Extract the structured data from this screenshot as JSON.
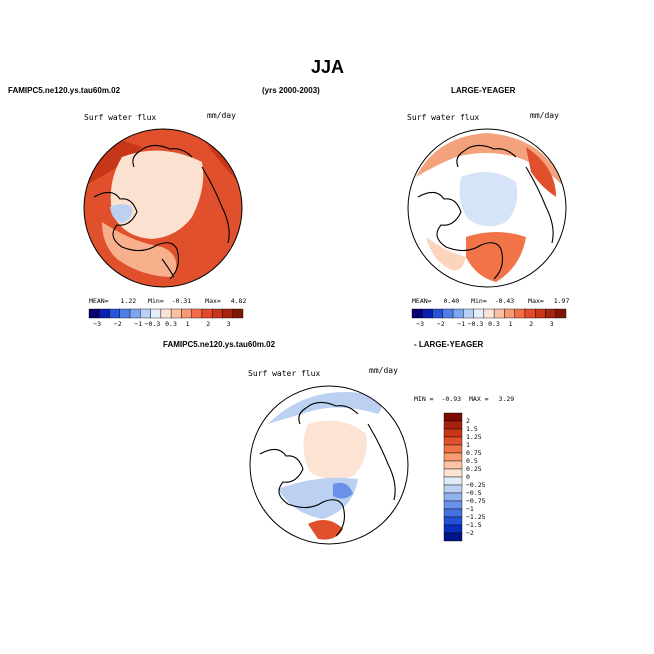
{
  "page": {
    "title": "JJA",
    "case_label": "FAMIPC5.ne120.ys.tau60m.02",
    "years_label": "(yrs 2000-2003)",
    "obs_label": "LARGE-YEAGER",
    "diff_case_label": "FAMIPC5.ne120.ys.tau60m.02",
    "diff_obs_label": "- LARGE-YEAGER"
  },
  "chart_data": [
    {
      "type": "heatmap",
      "id": "model",
      "title": "Surf water flux",
      "units": "mm/day",
      "stats": {
        "mean_label": "MEAN=",
        "mean": "1.22",
        "min_label": "Min=",
        "min": "-0.31",
        "max_label": "Max=",
        "max": "4.82"
      },
      "colorbar": {
        "orientation": "horizontal",
        "levels": [
          "-3",
          "-2",
          "-1",
          "-0.3",
          "0.3",
          "1",
          "2",
          "3"
        ],
        "colors": [
          "#08006e",
          "#0a1fb0",
          "#2a52d8",
          "#4e7fe6",
          "#7ea6f0",
          "#b8d0f4",
          "#e4eefa",
          "#fde4d4",
          "#fcc0a4",
          "#f89a76",
          "#f26c47",
          "#e24a28",
          "#c8361a",
          "#a42610",
          "#7e1606"
        ]
      }
    },
    {
      "type": "heatmap",
      "id": "obs",
      "title": "Surf water flux",
      "units": "mm/day",
      "stats": {
        "mean_label": "MEAN=",
        "mean": "0.40",
        "min_label": "Min=",
        "min": "-0.43",
        "max_label": "Max=",
        "max": "1.97"
      },
      "colorbar": {
        "orientation": "horizontal",
        "levels": [
          "-3",
          "-2",
          "-1",
          "-0.3",
          "0.3",
          "1",
          "2",
          "3"
        ],
        "colors": [
          "#08006e",
          "#0a1fb0",
          "#2a52d8",
          "#4e7fe6",
          "#7ea6f0",
          "#b8d0f4",
          "#e4eefa",
          "#fde4d4",
          "#fcc0a4",
          "#f89a76",
          "#f26c47",
          "#e24a28",
          "#c8361a",
          "#a42610",
          "#7e1606"
        ]
      }
    },
    {
      "type": "heatmap",
      "id": "diff",
      "title": "Surf water flux",
      "units": "mm/day",
      "stats": {
        "min_label": "MIN =",
        "min": "-0.93",
        "max_label": "MAX =",
        "max": "3.29"
      },
      "colorbar": {
        "orientation": "vertical",
        "levels": [
          "2",
          "1.5",
          "1.25",
          "1",
          "0.75",
          "0.5",
          "0.25",
          "0",
          "-0.25",
          "-0.5",
          "-0.75",
          "-1",
          "-1.25",
          "-1.5",
          "-2"
        ],
        "colors": [
          "#7e0a04",
          "#a8200e",
          "#c8361a",
          "#e0502c",
          "#f07448",
          "#f89a72",
          "#fcc3a6",
          "#fde3d4",
          "#e2ecf8",
          "#bcd1f2",
          "#92b2ee",
          "#6a90ea",
          "#4470e2",
          "#2450d6",
          "#0c2ebc",
          "#02148a"
        ]
      }
    }
  ]
}
